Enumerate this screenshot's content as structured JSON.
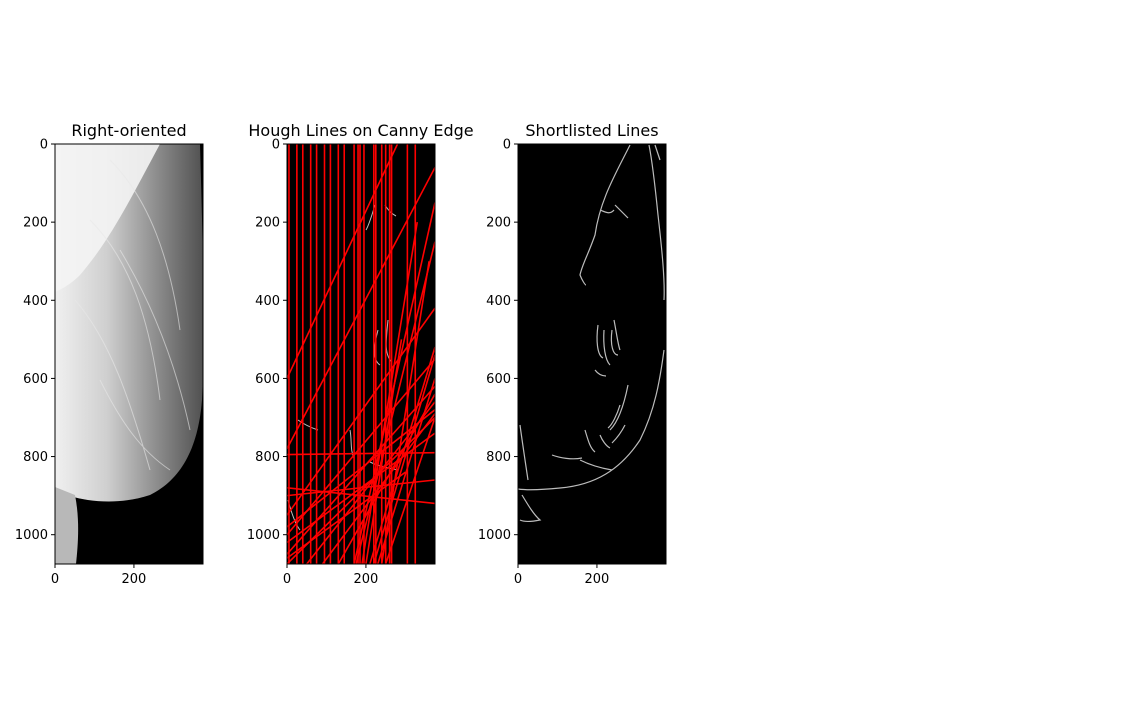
{
  "chart_data": [
    {
      "type": "image",
      "title": "Right-oriented",
      "xlim": [
        0,
        375
      ],
      "ylim": [
        1075,
        0
      ],
      "xticks": [
        0,
        200
      ],
      "yticks": [
        0,
        200,
        400,
        600,
        800,
        1000
      ],
      "content": "grayscale mammogram, breast tissue on the right side of a black background"
    },
    {
      "type": "image",
      "title": "Hough Lines on Canny Edge",
      "xlim": [
        0,
        375
      ],
      "ylim": [
        1075,
        0
      ],
      "xticks": [
        0,
        200
      ],
      "yticks": [
        0,
        200,
        400,
        600,
        800,
        1000
      ],
      "content": "canny edge map with red detected hough lines overlaid",
      "line_color": "#ff0000",
      "vertical_lines_x": [
        5,
        25,
        40,
        60,
        75,
        95,
        110,
        130,
        145,
        170,
        180,
        185,
        195,
        220,
        225,
        240,
        250,
        260,
        265,
        305,
        325
      ],
      "segments": [
        [
          [
            0,
            600
          ],
          [
            280,
            0
          ]
        ],
        [
          [
            0,
            780
          ],
          [
            375,
            60
          ]
        ],
        [
          [
            0,
            950
          ],
          [
            375,
            420
          ]
        ],
        [
          [
            0,
            1000
          ],
          [
            375,
            550
          ]
        ],
        [
          [
            0,
            1050
          ],
          [
            375,
            620
          ]
        ],
        [
          [
            0,
            1075
          ],
          [
            375,
            700
          ]
        ],
        [
          [
            0,
            980
          ],
          [
            375,
            680
          ]
        ],
        [
          [
            0,
            1020
          ],
          [
            375,
            740
          ]
        ],
        [
          [
            0,
            900
          ],
          [
            375,
            860
          ]
        ],
        [
          [
            0,
            795
          ],
          [
            375,
            790
          ]
        ],
        [
          [
            0,
            880
          ],
          [
            375,
            920
          ]
        ],
        [
          [
            170,
            1075
          ],
          [
            375,
            150
          ]
        ],
        [
          [
            175,
            1075
          ],
          [
            375,
            250
          ]
        ],
        [
          [
            190,
            1075
          ],
          [
            330,
            200
          ]
        ],
        [
          [
            210,
            1075
          ],
          [
            375,
            520
          ]
        ],
        [
          [
            230,
            1075
          ],
          [
            375,
            600
          ]
        ],
        [
          [
            250,
            1075
          ],
          [
            375,
            700
          ]
        ],
        [
          [
            200,
            1075
          ],
          [
            290,
            500
          ]
        ],
        [
          [
            220,
            1075
          ],
          [
            375,
            540
          ]
        ],
        [
          [
            240,
            1075
          ],
          [
            360,
            300
          ]
        ],
        [
          [
            50,
            1075
          ],
          [
            375,
            660
          ]
        ],
        [
          [
            90,
            1075
          ],
          [
            375,
            690
          ]
        ],
        [
          [
            130,
            1075
          ],
          [
            375,
            640
          ]
        ],
        [
          [
            0,
            1060
          ],
          [
            300,
            840
          ]
        ]
      ]
    },
    {
      "type": "image",
      "title": "Shortlisted Lines",
      "xlim": [
        0,
        375
      ],
      "ylim": [
        1075,
        0
      ],
      "xticks": [
        0,
        200
      ],
      "yticks": [
        0,
        200,
        400,
        600,
        800,
        1000
      ],
      "content": "canny edge map (gray edges on black)"
    }
  ]
}
